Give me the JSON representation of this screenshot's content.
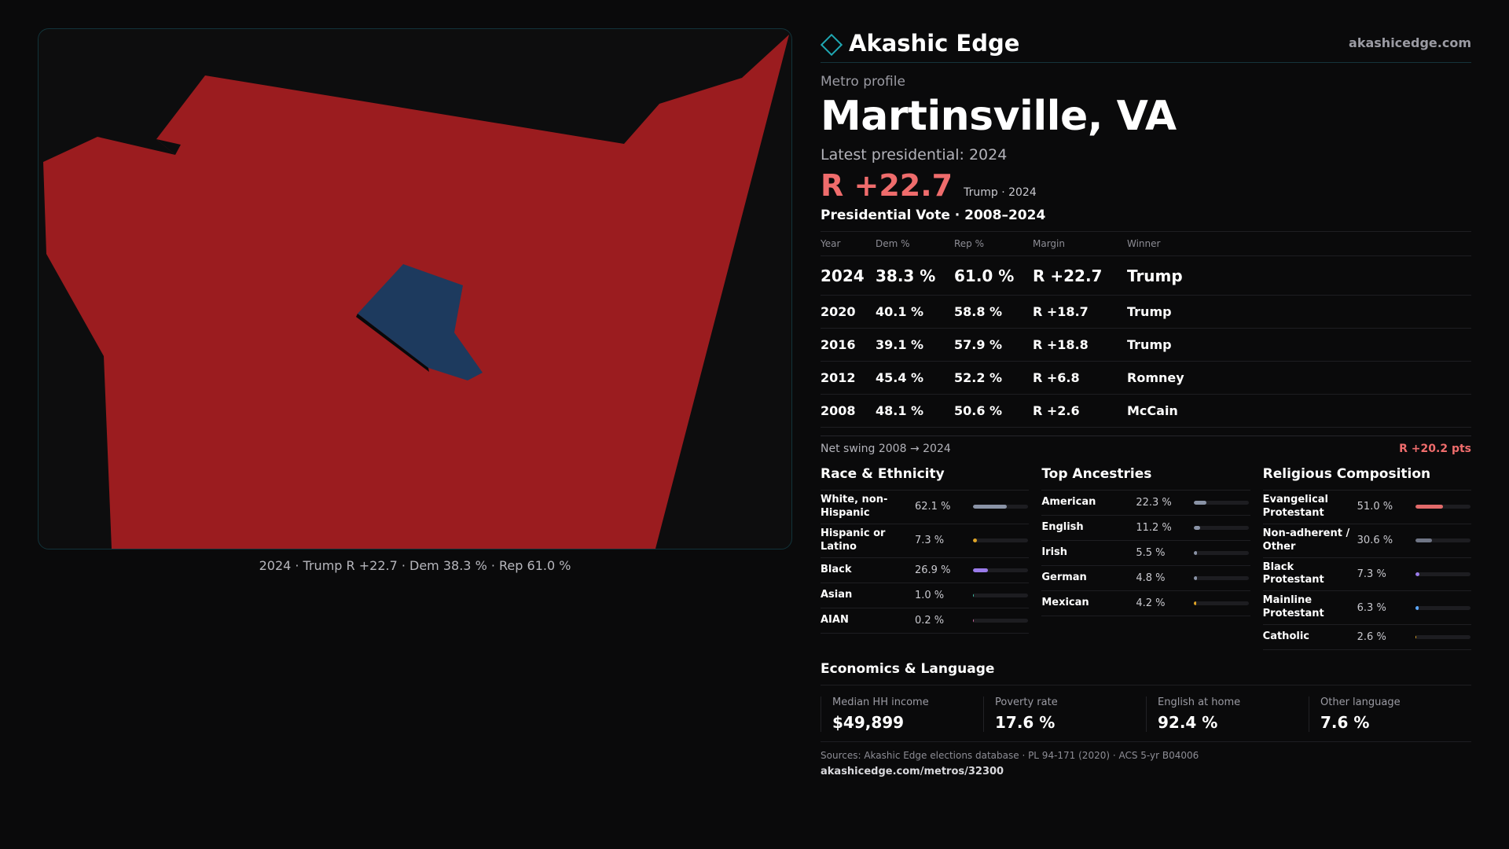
{
  "brand": {
    "name": "Akashic Edge",
    "domain": "akashicedge.com",
    "accent": "#1fa8b3"
  },
  "map": {
    "caption": "2024 · Trump R +22.7 · Dem 38.3 % · Rep 61.0 %",
    "rep_color": "#9b1c1f",
    "dem_color": "#1d3a5e"
  },
  "profile": {
    "eyebrow": "Metro profile",
    "title": "Martinsville, VA",
    "latest": "Latest presidential: 2024",
    "margin": "R +22.7",
    "margin_sub": "Trump · 2024"
  },
  "votes": {
    "title": "Presidential Vote · 2008–2024",
    "headers": [
      "Year",
      "Dem %",
      "Rep %",
      "Margin",
      "Winner"
    ],
    "rows": [
      {
        "year": "2024",
        "dem": "38.3 %",
        "rep": "61.0 %",
        "margin": "R +22.7",
        "winner": "Trump"
      },
      {
        "year": "2020",
        "dem": "40.1 %",
        "rep": "58.8 %",
        "margin": "R +18.7",
        "winner": "Trump"
      },
      {
        "year": "2016",
        "dem": "39.1 %",
        "rep": "57.9 %",
        "margin": "R +18.8",
        "winner": "Trump"
      },
      {
        "year": "2012",
        "dem": "45.4 %",
        "rep": "52.2 %",
        "margin": "R +6.8",
        "winner": "Romney"
      },
      {
        "year": "2008",
        "dem": "48.1 %",
        "rep": "50.6 %",
        "margin": "R +2.6",
        "winner": "McCain"
      }
    ],
    "swing_label": "Net swing 2008 → 2024",
    "swing_value": "R +20.2 pts"
  },
  "race": {
    "title": "Race & Ethnicity",
    "rows": [
      {
        "label": "White, non-Hispanic",
        "value": "62.1 %",
        "pct": 62.1,
        "color": "#8a93a6"
      },
      {
        "label": "Hispanic or Latino",
        "value": "7.3 %",
        "pct": 7.3,
        "color": "#e0a526"
      },
      {
        "label": "Black",
        "value": "26.9 %",
        "pct": 26.9,
        "color": "#9a7bea"
      },
      {
        "label": "Asian",
        "value": "1.0 %",
        "pct": 1.0,
        "color": "#3fc1a8"
      },
      {
        "label": "AIAN",
        "value": "0.2 %",
        "pct": 0.2,
        "color": "#d06aa0"
      }
    ]
  },
  "ancestry": {
    "title": "Top Ancestries",
    "rows": [
      {
        "label": "American",
        "value": "22.3 %",
        "pct": 22.3,
        "color": "#8a93a6"
      },
      {
        "label": "English",
        "value": "11.2 %",
        "pct": 11.2,
        "color": "#8a93a6"
      },
      {
        "label": "Irish",
        "value": "5.5 %",
        "pct": 5.5,
        "color": "#8a93a6"
      },
      {
        "label": "German",
        "value": "4.8 %",
        "pct": 4.8,
        "color": "#8a93a6"
      },
      {
        "label": "Mexican",
        "value": "4.2 %",
        "pct": 4.2,
        "color": "#e0a526"
      }
    ]
  },
  "religion": {
    "title": "Religious Composition",
    "rows": [
      {
        "label": "Evangelical Protestant",
        "value": "51.0 %",
        "pct": 51.0,
        "color": "#e26a6a"
      },
      {
        "label": "Non-adherent / Other",
        "value": "30.6 %",
        "pct": 30.6,
        "color": "#6f7585"
      },
      {
        "label": "Black Protestant",
        "value": "7.3 %",
        "pct": 7.3,
        "color": "#9a7bea"
      },
      {
        "label": "Mainline Protestant",
        "value": "6.3 %",
        "pct": 6.3,
        "color": "#5ca8ff"
      },
      {
        "label": "Catholic",
        "value": "2.6 %",
        "pct": 2.6,
        "color": "#e0a526"
      }
    ]
  },
  "economics": {
    "title": "Economics & Language",
    "cells": [
      {
        "label": "Median HH income",
        "value": "$49,899"
      },
      {
        "label": "Poverty rate",
        "value": "17.6 %"
      },
      {
        "label": "English at home",
        "value": "92.4 %"
      },
      {
        "label": "Other language",
        "value": "7.6 %"
      }
    ]
  },
  "footer": {
    "sources": "Sources: Akashic Edge elections database · PL 94-171 (2020) · ACS 5-yr B04006",
    "url": "akashicedge.com/metros/32300"
  }
}
